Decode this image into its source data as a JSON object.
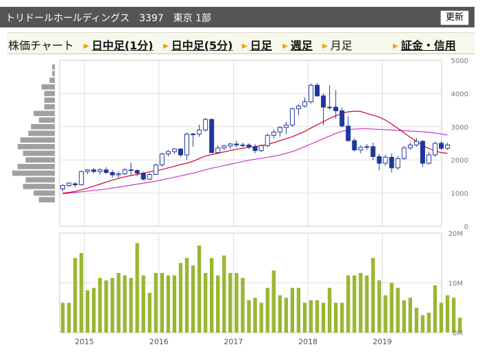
{
  "header": {
    "title": "トリドールホールディングス　3397　東京 1部",
    "refresh_label": "更新"
  },
  "nav": {
    "label": "株価チャート",
    "links": [
      {
        "label": "日中足(1分)",
        "active": true
      },
      {
        "label": "日中足(5分)",
        "active": true
      },
      {
        "label": "日足",
        "active": true
      },
      {
        "label": "週足",
        "active": true
      },
      {
        "label": "月足",
        "active": false
      },
      {
        "label": "証金・信用",
        "active": true
      }
    ]
  },
  "chart_data": [
    {
      "type": "candlestick",
      "title": "",
      "ylim": [
        0,
        5000
      ],
      "yticks": [
        "5000",
        "4000",
        "3000",
        "2000",
        "1000",
        "0"
      ],
      "xticks": [
        "2015",
        "2016",
        "2017",
        "2018",
        "2019"
      ],
      "grid": true,
      "start_month": "2014-09",
      "candles": [
        [
          1130,
          1270,
          1050,
          1230
        ],
        [
          1230,
          1330,
          1180,
          1300
        ],
        [
          1280,
          1330,
          1180,
          1250
        ],
        [
          1250,
          1680,
          1230,
          1650
        ],
        [
          1650,
          1720,
          1570,
          1700
        ],
        [
          1700,
          1760,
          1600,
          1650
        ],
        [
          1650,
          1750,
          1560,
          1700
        ],
        [
          1700,
          1780,
          1580,
          1620
        ],
        [
          1620,
          1700,
          1470,
          1550
        ],
        [
          1550,
          1650,
          1460,
          1580
        ],
        [
          1580,
          1760,
          1550,
          1700
        ],
        [
          1700,
          1920,
          1550,
          1680
        ],
        [
          1680,
          1720,
          1520,
          1600
        ],
        [
          1600,
          1640,
          1380,
          1420
        ],
        [
          1420,
          1600,
          1390,
          1560
        ],
        [
          1560,
          1880,
          1550,
          1850
        ],
        [
          1850,
          2220,
          1800,
          2180
        ],
        [
          2180,
          2300,
          2100,
          2250
        ],
        [
          2250,
          2360,
          2180,
          2330
        ],
        [
          2330,
          2350,
          2090,
          2150
        ],
        [
          2150,
          2820,
          2000,
          2780
        ],
        [
          2780,
          2820,
          2400,
          2780
        ],
        [
          2780,
          3060,
          2700,
          2900
        ],
        [
          2900,
          3270,
          2850,
          3220
        ],
        [
          3220,
          3250,
          2200,
          2220
        ],
        [
          2220,
          2440,
          2180,
          2360
        ],
        [
          2360,
          2460,
          2300,
          2420
        ],
        [
          2420,
          2520,
          2330,
          2480
        ],
        [
          2480,
          2580,
          2380,
          2450
        ],
        [
          2450,
          2520,
          2370,
          2450
        ],
        [
          2450,
          2500,
          2330,
          2400
        ],
        [
          2400,
          2480,
          2200,
          2280
        ],
        [
          2280,
          2470,
          2230,
          2430
        ],
        [
          2430,
          2800,
          2380,
          2740
        ],
        [
          2740,
          2920,
          2650,
          2840
        ],
        [
          2840,
          3010,
          2700,
          2980
        ],
        [
          2980,
          3150,
          2780,
          3050
        ],
        [
          3050,
          3580,
          3000,
          3540
        ],
        [
          3540,
          3680,
          3350,
          3620
        ],
        [
          3620,
          3880,
          3580,
          3750
        ],
        [
          3750,
          4300,
          3700,
          4250
        ],
        [
          4250,
          4320,
          3900,
          3930
        ],
        [
          3930,
          4000,
          3050,
          3590
        ],
        [
          3590,
          4250,
          3500,
          3590
        ],
        [
          3590,
          4100,
          3250,
          3480
        ],
        [
          3480,
          3580,
          2980,
          3020
        ],
        [
          3020,
          3320,
          2550,
          2580
        ],
        [
          2580,
          2650,
          2250,
          2300
        ],
        [
          2300,
          2440,
          2200,
          2380
        ],
        [
          2380,
          2480,
          2300,
          2400
        ],
        [
          2400,
          2520,
          2000,
          2100
        ],
        [
          2100,
          2180,
          1680,
          1900
        ],
        [
          1900,
          2160,
          1820,
          2080
        ],
        [
          2080,
          2200,
          1620,
          1760
        ],
        [
          1760,
          2120,
          1700,
          2040
        ],
        [
          2040,
          2420,
          2000,
          2360
        ],
        [
          2360,
          2520,
          2300,
          2450
        ],
        [
          2450,
          2660,
          2400,
          2560
        ],
        [
          2560,
          2600,
          1800,
          1900
        ],
        [
          1900,
          2250,
          1860,
          2150
        ],
        [
          2150,
          2550,
          2100,
          2500
        ],
        [
          2500,
          2560,
          2300,
          2350
        ],
        [
          2350,
          2520,
          2300,
          2450
        ]
      ],
      "ma_short": [
        1000,
        1020,
        1050,
        1100,
        1150,
        1210,
        1270,
        1330,
        1390,
        1440,
        1490,
        1530,
        1560,
        1600,
        1640,
        1670,
        1710,
        1760,
        1810,
        1860,
        1900,
        1960,
        2040,
        2120,
        2160,
        2200,
        2240,
        2280,
        2320,
        2350,
        2380,
        2400,
        2430,
        2460,
        2520,
        2580,
        2640,
        2700,
        2780,
        2860,
        2960,
        3060,
        3150,
        3250,
        3330,
        3400,
        3450,
        3470,
        3460,
        3400,
        3350,
        3290,
        3200,
        3080,
        2950,
        2820,
        2680,
        2560,
        2440,
        2340,
        2270,
        2220,
        2200
      ],
      "ma_long": [
        980,
        1000,
        1020,
        1040,
        1060,
        1080,
        1100,
        1120,
        1150,
        1180,
        1210,
        1240,
        1270,
        1300,
        1330,
        1360,
        1400,
        1440,
        1480,
        1520,
        1560,
        1600,
        1650,
        1700,
        1750,
        1790,
        1830,
        1870,
        1910,
        1950,
        1990,
        2020,
        2050,
        2080,
        2110,
        2150,
        2200,
        2250,
        2320,
        2400,
        2480,
        2560,
        2640,
        2720,
        2800,
        2860,
        2900,
        2930,
        2940,
        2940,
        2930,
        2920,
        2910,
        2900,
        2890,
        2880,
        2870,
        2860,
        2850,
        2830,
        2810,
        2780,
        2750
      ],
      "histogram": [
        1,
        1,
        2,
        5,
        4,
        4,
        4,
        8,
        6,
        9,
        10,
        13,
        14,
        12,
        11,
        14,
        16,
        11,
        12,
        8,
        6
      ],
      "colors": {
        "up_candle": "#ffffff",
        "down_candle": "#1f3799",
        "ma_short": "#cc0033",
        "ma_long": "#cc33cc",
        "histogram": "#a0a0a0"
      }
    },
    {
      "type": "bar",
      "title": "",
      "ylim": [
        0,
        20
      ],
      "yticks": [
        "20M",
        "10M",
        "0M"
      ],
      "unit": "M",
      "values": [
        6,
        6,
        15,
        16,
        8.5,
        9,
        11,
        10.5,
        11,
        12,
        11.5,
        11,
        18,
        11.5,
        8,
        12,
        12,
        11.5,
        11.5,
        14,
        15,
        13.5,
        17.5,
        12,
        15,
        11.5,
        15.5,
        12,
        12,
        11,
        6.5,
        7,
        6,
        9,
        12.5,
        7.5,
        7,
        9,
        9,
        6,
        6.5,
        6.5,
        6,
        9,
        6,
        6,
        11.5,
        11.5,
        12,
        11.5,
        15,
        10.5,
        7.5,
        10,
        9,
        6.5,
        7,
        5,
        3.5,
        4,
        9.5,
        6,
        7.5,
        7,
        3
      ],
      "color": "#99b733"
    }
  ]
}
